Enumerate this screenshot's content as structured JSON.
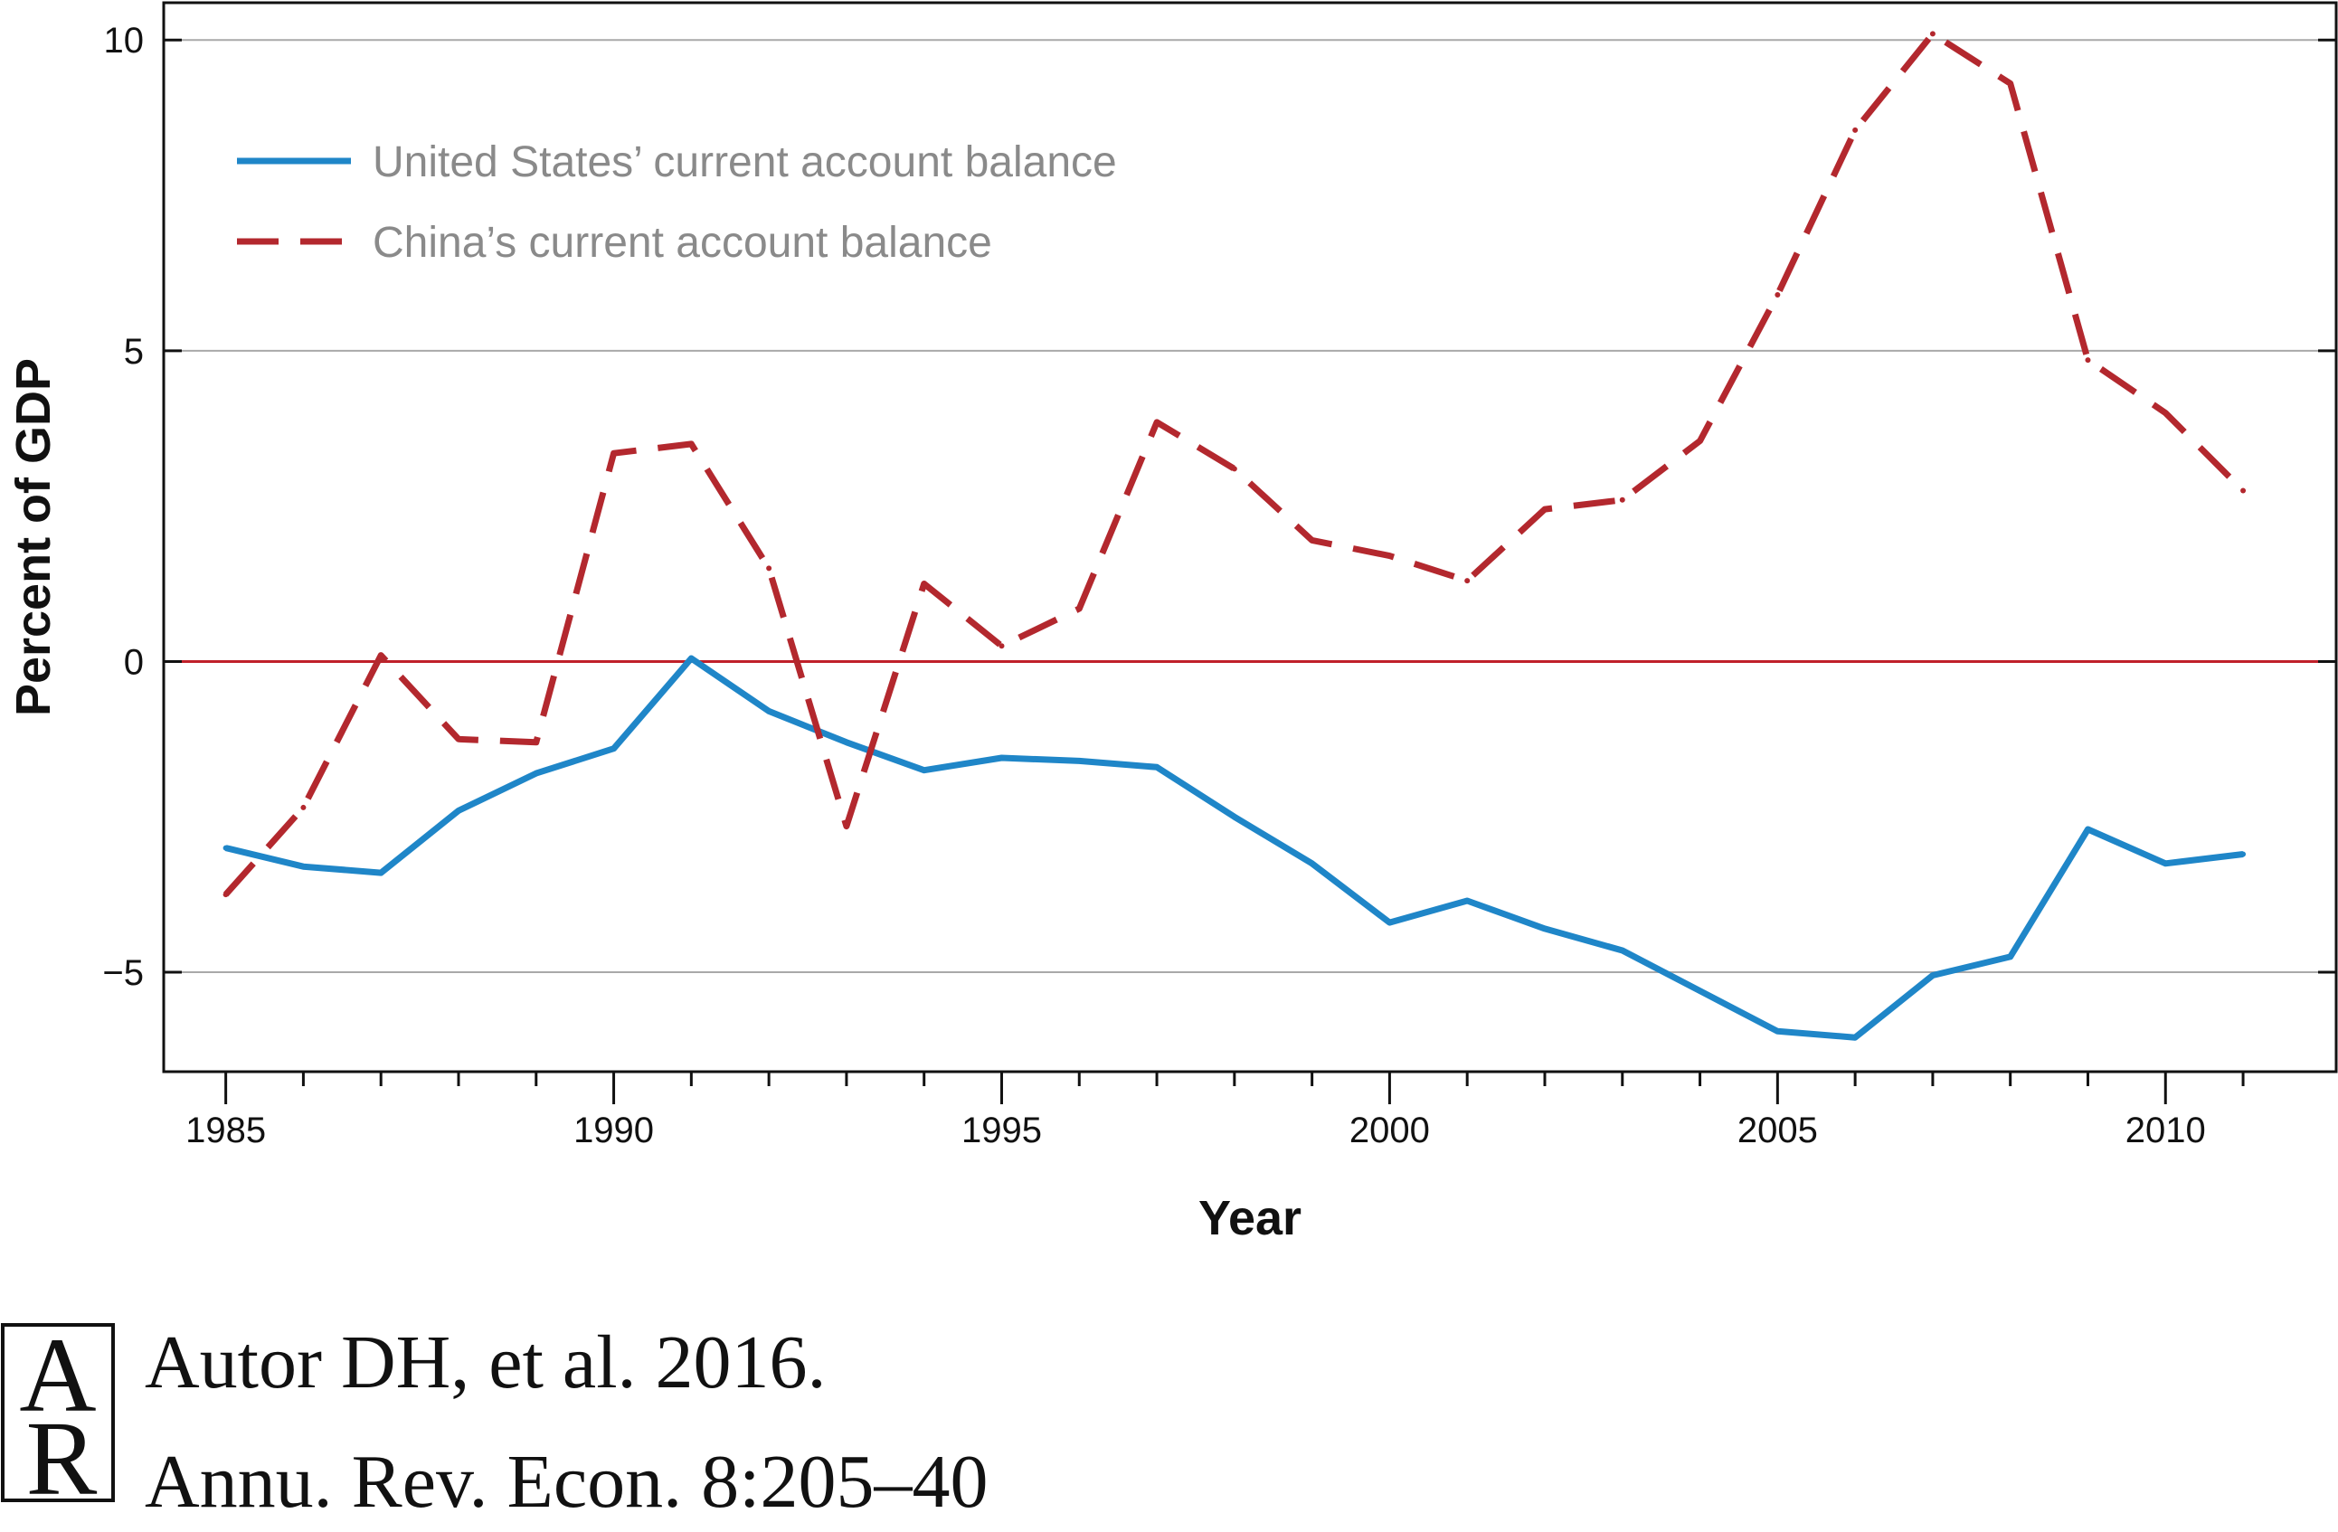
{
  "chart_data": {
    "type": "line",
    "title": "",
    "xlabel": "Year",
    "ylabel": "Percent of GDP",
    "xlim": [
      1984.2,
      2012.2
    ],
    "ylim": [
      -6.6,
      10.6
    ],
    "xticks": [
      1985,
      1990,
      1995,
      2000,
      2005,
      2010
    ],
    "yticks": [
      -5,
      0,
      5,
      10
    ],
    "ytick_labels": [
      "−5",
      "0",
      "5",
      "10"
    ],
    "grid": "horizontal",
    "legend_position": "top-left",
    "zero_line_color": "#c0202a",
    "series": [
      {
        "name": "United States’ current account balance",
        "style": "solid",
        "color": "#1f86c8",
        "x": [
          1985,
          1986,
          1987,
          1988,
          1989,
          1990,
          1991,
          1992,
          1993,
          1994,
          1995,
          1996,
          1997,
          1998,
          1999,
          2000,
          2001,
          2002,
          2003,
          2004,
          2005,
          2006,
          2007,
          2008,
          2009,
          2010,
          2011
        ],
        "y": [
          -3.0,
          -3.3,
          -3.4,
          -2.4,
          -1.8,
          -1.4,
          0.05,
          -0.8,
          -1.3,
          -1.75,
          -1.55,
          -1.6,
          -1.7,
          -2.5,
          -3.25,
          -4.2,
          -3.85,
          -4.3,
          -4.65,
          -5.3,
          -5.95,
          -6.05,
          -5.05,
          -4.75,
          -2.7,
          -3.25,
          -3.1
        ]
      },
      {
        "name": "China’s current account balance",
        "style": "dashed",
        "color": "#b3282e",
        "x": [
          1985,
          1986,
          1987,
          1988,
          1989,
          1990,
          1991,
          1992,
          1993,
          1994,
          1995,
          1996,
          1997,
          1998,
          1999,
          2000,
          2001,
          2002,
          2003,
          2004,
          2005,
          2006,
          2007,
          2008,
          2009,
          2010,
          2011
        ],
        "y": [
          -3.75,
          -2.35,
          0.1,
          -1.25,
          -1.3,
          3.35,
          3.5,
          1.5,
          -2.65,
          1.25,
          0.25,
          0.85,
          3.85,
          3.1,
          1.95,
          1.7,
          1.3,
          2.45,
          2.6,
          3.55,
          5.9,
          8.55,
          10.1,
          9.3,
          4.85,
          4.0,
          2.75
        ]
      }
    ]
  },
  "credit": {
    "line1": "Autor DH, et al. 2016.",
    "line2": "Annu. Rev. Econ. 8:205–40",
    "logo_letters": "AR"
  }
}
